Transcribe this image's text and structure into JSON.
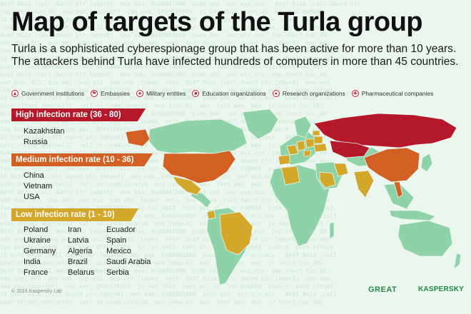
{
  "title": "Map of targets of the Turla group",
  "subtitle": "Turla is a sophisticated cyberespionage group that has been active for more than 10 years. The attackers behind Turla have infected hundreds of computers in more than 45 countries.",
  "legend": [
    {
      "label": "Government institutions",
      "icon": "government-icon"
    },
    {
      "label": "Embassies",
      "icon": "embassy-icon"
    },
    {
      "label": "Military entities",
      "icon": "military-icon"
    },
    {
      "label": "Education organizations",
      "icon": "education-icon"
    },
    {
      "label": "Research organizations",
      "icon": "research-icon"
    },
    {
      "label": "Pharmaceutical companies",
      "icon": "pharma-icon"
    }
  ],
  "colors": {
    "high": "#b4182a",
    "medium": "#d26022",
    "low": "#d3a72a",
    "land": "#8ed3a7"
  },
  "high": {
    "label": "High infection rate (36 - 80)",
    "countries": [
      "Kazakhstan",
      "Russia"
    ]
  },
  "medium": {
    "label": "Medium infection rate (10 - 36)",
    "countries": [
      "China",
      "Vietnam",
      "USA"
    ]
  },
  "low": {
    "label": "Low infection rate (1 - 10)",
    "columns": [
      [
        "Poland",
        "Ukraine",
        "Germany",
        "India",
        "France"
      ],
      [
        "Iran",
        "Latvia",
        "Algeria",
        "Brazil",
        "Belarus"
      ],
      [
        "Ecuador",
        "Spain",
        "Mexico",
        "Saudi Arabia",
        "Serbia"
      ]
    ]
  },
  "footer": {
    "copyright": "© 2015 Kaspersky Lab",
    "brand1": "GREAT",
    "brand2": "KASPERSKY"
  }
}
